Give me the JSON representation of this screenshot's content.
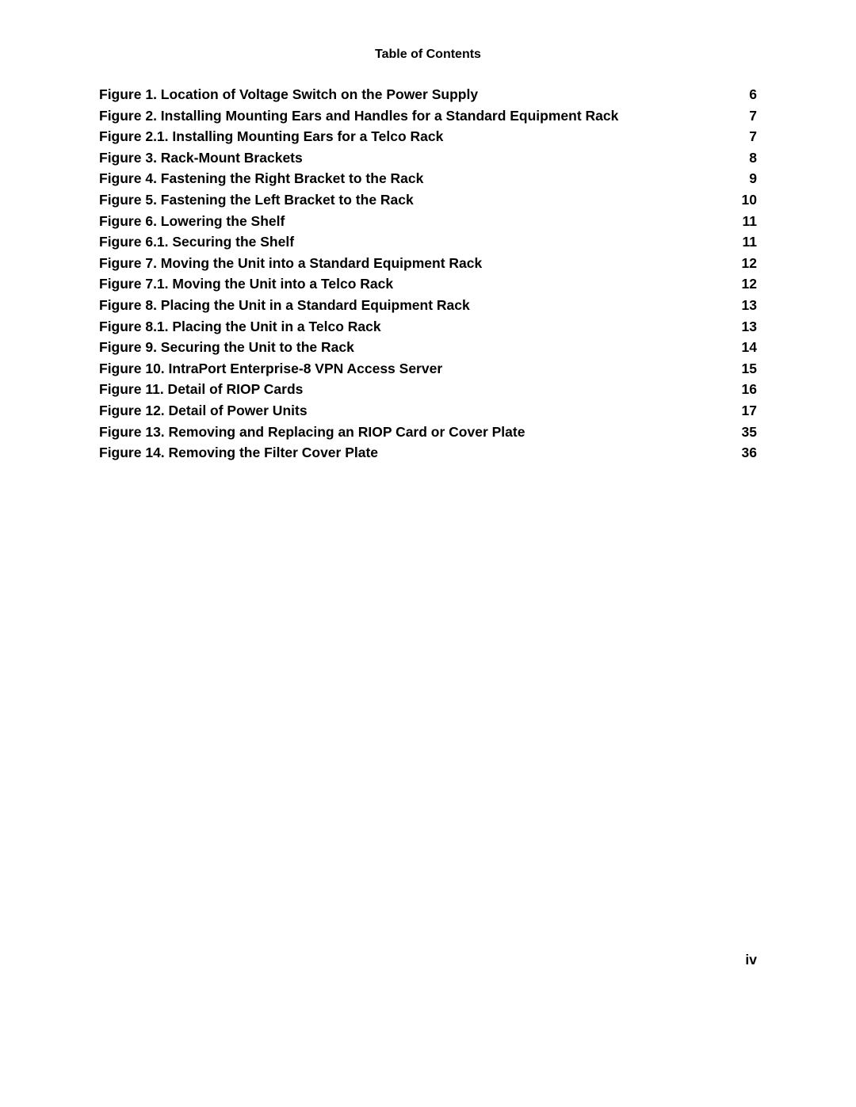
{
  "title": "Table of Contents",
  "entries": [
    {
      "label": "Figure 1. Location of Voltage Switch on the Power Supply",
      "page": "6"
    },
    {
      "label": "Figure 2. Installing Mounting Ears and Handles for a Standard Equipment Rack",
      "page": "7"
    },
    {
      "label": "Figure 2.1. Installing Mounting Ears for a Telco Rack",
      "page": "7"
    },
    {
      "label": "Figure 3. Rack-Mount Brackets",
      "page": "8"
    },
    {
      "label": "Figure 4. Fastening the Right Bracket to the Rack",
      "page": "9"
    },
    {
      "label": "Figure 5. Fastening the Left Bracket to the Rack",
      "page": "10"
    },
    {
      "label": "Figure 6. Lowering the Shelf",
      "page": "11"
    },
    {
      "label": "Figure 6.1. Securing the Shelf",
      "page": "11"
    },
    {
      "label": "Figure 7. Moving the Unit into a Standard Equipment Rack",
      "page": "12"
    },
    {
      "label": "Figure 7.1. Moving the Unit into a Telco Rack",
      "page": "12"
    },
    {
      "label": "Figure 8. Placing the Unit in a Standard Equipment Rack",
      "page": "13"
    },
    {
      "label": "Figure 8.1. Placing the Unit in a Telco Rack",
      "page": "13"
    },
    {
      "label": "Figure 9. Securing the Unit to the Rack",
      "page": "14"
    },
    {
      "label": "Figure 10. IntraPort Enterprise-8 VPN Access Server",
      "page": "15"
    },
    {
      "label": "Figure 11. Detail of RIOP Cards",
      "page": "16"
    },
    {
      "label": "Figure 12. Detail of Power Units",
      "page": "17"
    },
    {
      "label": "Figure 13. Removing and Replacing an RIOP Card or Cover Plate",
      "page": "35"
    },
    {
      "label": "Figure 14. Removing the Filter Cover Plate",
      "page": "36"
    }
  ],
  "pageNumber": "iv",
  "colors": {
    "text": "#000000",
    "background": "#ffffff"
  },
  "typography": {
    "title_fontsize": 16,
    "entry_fontsize": 17.5,
    "font_weight": "bold",
    "font_family": "Arial"
  }
}
